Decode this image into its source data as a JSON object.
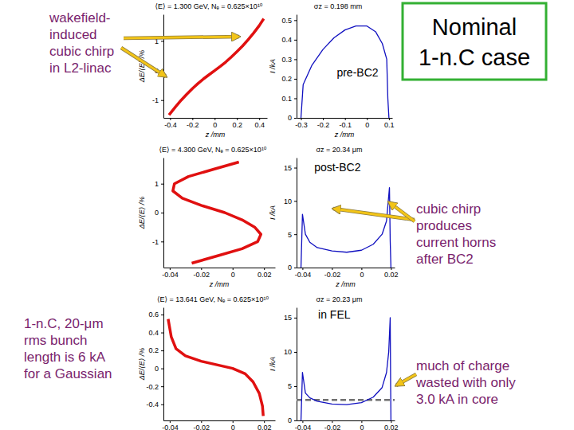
{
  "slide": {
    "title": [
      "Nominal",
      "1-n.C case"
    ],
    "annotations": [
      {
        "lines": [
          "wakefield-",
          "induced",
          "cubic chirp",
          "in L2-linac"
        ]
      },
      {
        "lines": [
          "1-n.C, 20-μm",
          "rms bunch",
          "length is 6 kA",
          "for a Gaussian"
        ]
      },
      {
        "lines": [
          "cubic chirp",
          "produces",
          "current horns",
          "after BC2"
        ]
      },
      {
        "lines": [
          "much of charge",
          "wasted with only",
          "3.0 kA in core"
        ]
      }
    ]
  },
  "chart_data": [
    {
      "type": "line",
      "title": "⟨E⟩ = 1.300 GeV, Nₑ = 0.625×10¹⁰",
      "x_label": "z /mm",
      "y_label": "ΔE/⟨E⟩ /%",
      "color": "#e01010",
      "x": [
        -0.41,
        -0.35,
        -0.3,
        -0.25,
        -0.2,
        -0.15,
        -0.1,
        -0.05,
        0,
        0.05,
        0.1,
        0.15,
        0.2,
        0.25,
        0.3,
        0.35,
        0.4,
        0.44
      ],
      "values": [
        -1.5,
        -1.22,
        -1.0,
        -0.8,
        -0.61,
        -0.44,
        -0.28,
        -0.14,
        0,
        0.14,
        0.29,
        0.46,
        0.64,
        0.83,
        1.04,
        1.27,
        1.52,
        1.75
      ],
      "xlim": [
        -0.46,
        0.47
      ],
      "ylim": [
        -1.6,
        1.9
      ],
      "xticks": [
        -0.4,
        -0.2,
        0,
        0.2,
        0.4
      ],
      "yticks": [
        -1,
        0,
        1
      ]
    },
    {
      "type": "line",
      "title": "σz = 0.198 mm",
      "x_label": "z /mm",
      "y_label": "I /kA",
      "color": "#1010c0",
      "annotations": [
        "pre-BC2"
      ],
      "x": [
        -0.3,
        -0.29,
        -0.25,
        -0.2,
        -0.15,
        -0.1,
        -0.05,
        0,
        0.04,
        0.07,
        0.09,
        0.095,
        0.1
      ],
      "values": [
        0,
        0.17,
        0.27,
        0.35,
        0.41,
        0.45,
        0.47,
        0.47,
        0.44,
        0.38,
        0.3,
        0.1,
        0
      ],
      "xlim": [
        -0.32,
        0.115
      ],
      "ylim": [
        0,
        0.53
      ],
      "xticks": [
        -0.3,
        -0.2,
        -0.1,
        0,
        0.1
      ],
      "yticks": [
        0,
        0.1,
        0.2,
        0.3,
        0.4,
        0.5
      ]
    },
    {
      "type": "line",
      "title": "⟨E⟩ = 4.300 GeV, Nₑ = 0.625×10¹⁰",
      "x_label": "z /mm",
      "y_label": "ΔE/⟨E⟩ /%",
      "color": "#e01010",
      "x": [
        0.004,
        -0.012,
        -0.028,
        -0.037,
        -0.038,
        -0.032,
        -0.02,
        -0.005,
        0.006,
        0.014,
        0.018,
        0.016,
        0.006,
        -0.01,
        -0.026
      ],
      "values": [
        1.75,
        1.5,
        1.25,
        1.0,
        0.75,
        0.5,
        0.25,
        0,
        -0.25,
        -0.5,
        -0.75,
        -1.0,
        -1.25,
        -1.5,
        -1.75
      ],
      "xlim": [
        -0.044,
        0.027
      ],
      "ylim": [
        -1.9,
        1.9
      ],
      "xticks": [
        -0.04,
        -0.02,
        0,
        0.02
      ],
      "yticks": [
        -1,
        0,
        1
      ]
    },
    {
      "type": "line",
      "title": "σz = 20.34 μm",
      "x_label": "z /mm",
      "y_label": "I /kA",
      "color": "#1010c0",
      "annotations": [
        "post-BC2"
      ],
      "x": [
        -0.041,
        -0.04,
        -0.038,
        -0.035,
        -0.03,
        -0.02,
        -0.01,
        0,
        0.008,
        0.014,
        0.017,
        0.019,
        0.0195,
        0.02
      ],
      "values": [
        0,
        8,
        5,
        3.8,
        3,
        2.5,
        2.3,
        2.6,
        3.5,
        5,
        7,
        12,
        4,
        0
      ],
      "xlim": [
        -0.044,
        0.0225
      ],
      "ylim": [
        0,
        16.5
      ],
      "xticks": [
        -0.04,
        -0.02,
        0,
        0.02
      ],
      "yticks": [
        0,
        5,
        10,
        15
      ]
    },
    {
      "type": "line",
      "title": "⟨E⟩ = 13.641 GeV, Nₑ = 0.625×10¹⁰",
      "x_label": "z /mm",
      "y_label": "ΔE/⟨E⟩ /%",
      "color": "#e01010",
      "x": [
        -0.041,
        -0.039,
        -0.036,
        -0.03,
        -0.02,
        -0.01,
        0,
        0.008,
        0.013,
        0.017,
        0.019,
        0.0195
      ],
      "values": [
        0.55,
        0.35,
        0.22,
        0.14,
        0.08,
        0.04,
        0,
        -0.06,
        -0.15,
        -0.28,
        -0.42,
        -0.53
      ],
      "xlim": [
        -0.044,
        0.027
      ],
      "ylim": [
        -0.58,
        0.68
      ],
      "xticks": [
        -0.04,
        -0.02,
        0,
        0.02
      ],
      "yticks": [
        -0.4,
        -0.2,
        0,
        0.2,
        0.4,
        0.6
      ]
    },
    {
      "type": "line",
      "title": "σz = 20.23 μm",
      "x_label": "z /mm",
      "y_label": "I /kA",
      "color": "#1010c0",
      "annotations": [
        "in FEL"
      ],
      "reference_value": 3.0,
      "x": [
        -0.041,
        -0.04,
        -0.038,
        -0.035,
        -0.03,
        -0.02,
        -0.01,
        0,
        0.008,
        0.014,
        0.017,
        0.0185,
        0.0195,
        0.0198,
        0.02
      ],
      "values": [
        0,
        7,
        4,
        3.3,
        2.8,
        2.4,
        2.3,
        2.6,
        3.4,
        4.8,
        7,
        10,
        15,
        5,
        0
      ],
      "xlim": [
        -0.044,
        0.0225
      ],
      "ylim": [
        0,
        16.5
      ],
      "xticks": [
        -0.04,
        -0.02,
        0,
        0.02
      ],
      "yticks": [
        0,
        5,
        10,
        15
      ]
    }
  ]
}
